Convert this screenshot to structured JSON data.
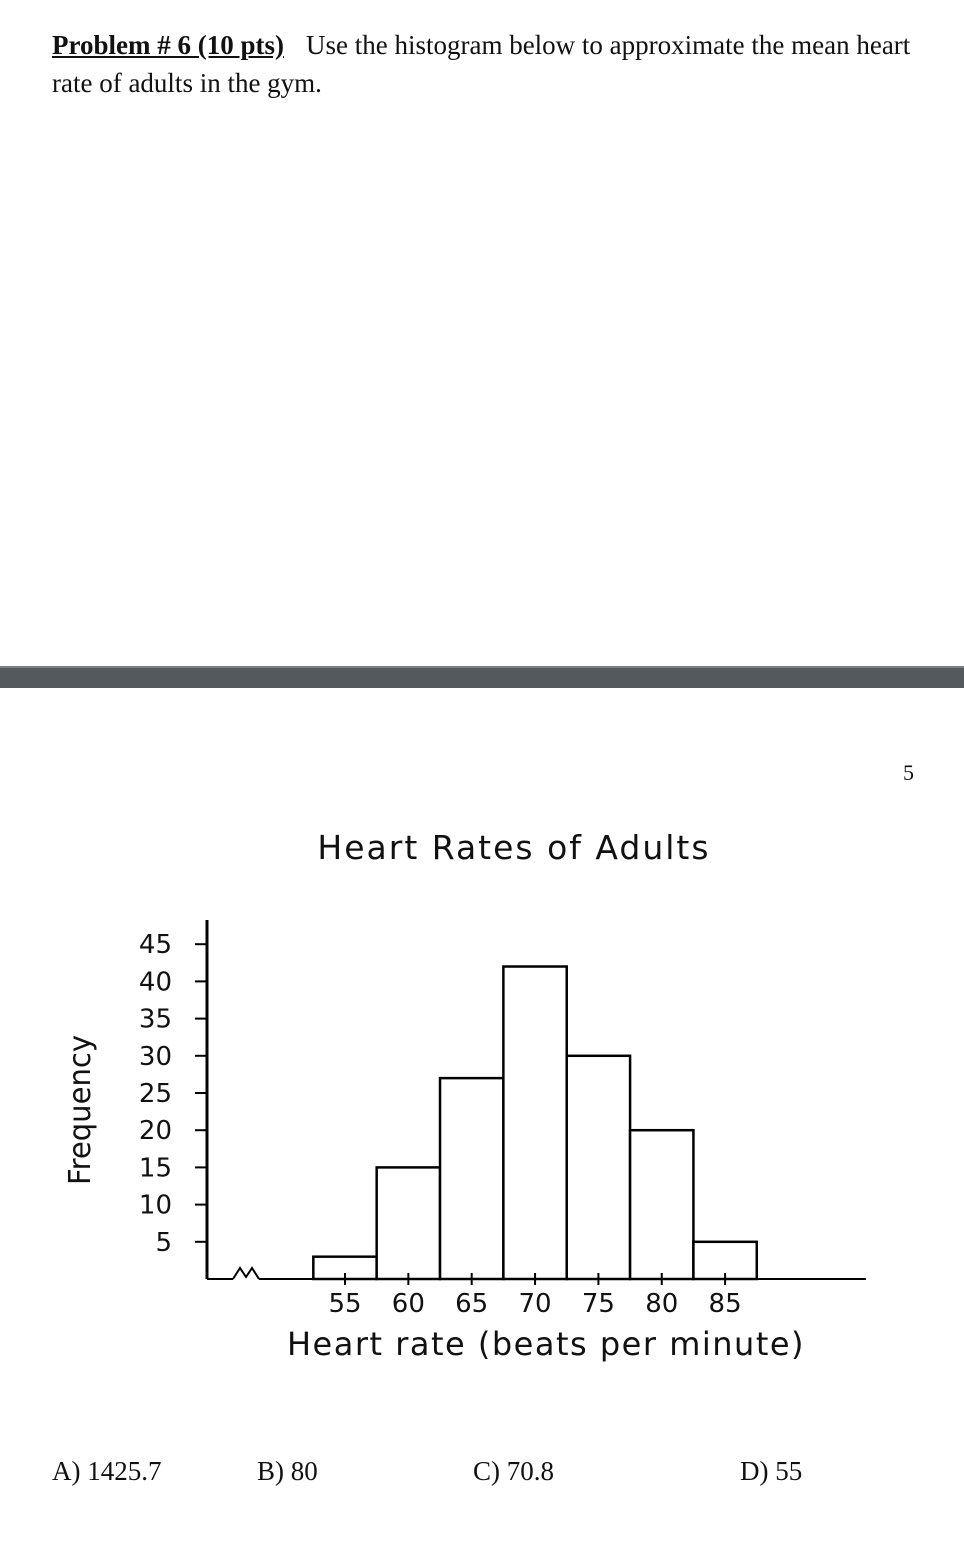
{
  "problem": {
    "heading": "Problem # 6 (10 pts)",
    "text": "Use the histogram below to approximate the mean heart rate of adults in the gym."
  },
  "page_number": "5",
  "chart_data": {
    "type": "bar",
    "title": "Heart Rates of Adults",
    "xlabel": "Heart rate (beats per minute)",
    "ylabel": "Frequency",
    "x_ticks": [
      55,
      60,
      65,
      70,
      75,
      80,
      85
    ],
    "y_ticks": [
      5,
      10,
      15,
      20,
      25,
      30,
      35,
      40,
      45
    ],
    "ylim": [
      0,
      45
    ],
    "bins": [
      {
        "start": 52.5,
        "end": 57.5,
        "value": 3
      },
      {
        "start": 57.5,
        "end": 62.5,
        "value": 15
      },
      {
        "start": 62.5,
        "end": 67.5,
        "value": 27
      },
      {
        "start": 67.5,
        "end": 72.5,
        "value": 42
      },
      {
        "start": 72.5,
        "end": 77.5,
        "value": 30
      },
      {
        "start": 77.5,
        "end": 82.5,
        "value": 20
      },
      {
        "start": 82.5,
        "end": 87.5,
        "value": 5
      }
    ],
    "axis_break": true,
    "grid": false,
    "bar_fill": "#ffffff",
    "bar_stroke": "#000000"
  },
  "answers": [
    {
      "label": "A) 1425.7"
    },
    {
      "label": "B) 80"
    },
    {
      "label": "C) 70.8"
    },
    {
      "label": "D) 55"
    }
  ]
}
